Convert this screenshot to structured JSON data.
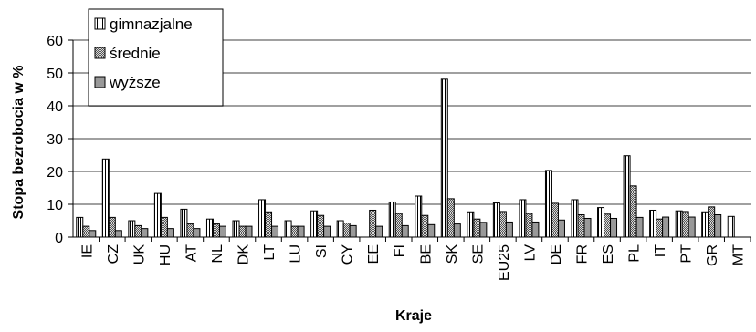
{
  "chart_data": {
    "type": "bar",
    "xlabel": "Kraje",
    "ylabel": "Stopa bezrobocia w %",
    "ylim": [
      0,
      60
    ],
    "yticks": [
      0,
      10,
      20,
      30,
      40,
      50,
      60
    ],
    "grid": "horizontal",
    "legend_position": "top-left",
    "categories": [
      "IE",
      "CZ",
      "UK",
      "HU",
      "AT",
      "NL",
      "DK",
      "LT",
      "LU",
      "SI",
      "CY",
      "EE",
      "FI",
      "BE",
      "SK",
      "SE",
      "EU25",
      "LV",
      "DE",
      "FR",
      "ES",
      "PL",
      "IT",
      "PT",
      "GR",
      "MT"
    ],
    "series": [
      {
        "name": "gimnazjalne",
        "pattern": "vertical-stripes",
        "values": [
          6,
          23.8,
          5,
          13.3,
          8.5,
          5.5,
          5,
          11.4,
          5,
          8,
          5,
          0,
          10.7,
          12.5,
          48.1,
          7.7,
          10.4,
          11.4,
          20.3,
          11.4,
          9,
          24.8,
          8.2,
          8,
          7.7,
          6.3
        ]
      },
      {
        "name": "średnie",
        "pattern": "crosshatch",
        "values": [
          3.3,
          6,
          3.5,
          6,
          4,
          4,
          3.3,
          7.7,
          3.3,
          6.6,
          4.3,
          8.2,
          7.2,
          6.6,
          11.7,
          5.5,
          7.8,
          7.2,
          10.3,
          6.8,
          7,
          15.6,
          5.5,
          7.8,
          9.2,
          0
        ]
      },
      {
        "name": "wyższe",
        "pattern": "solid-gray",
        "values": [
          2,
          2,
          2.6,
          2.6,
          2.6,
          3.3,
          3.3,
          3.3,
          3.3,
          3.3,
          3.5,
          3.3,
          3.5,
          3.8,
          4,
          4.5,
          4.6,
          4.6,
          5.2,
          5.7,
          5.7,
          6,
          6.1,
          6.1,
          6.8,
          0
        ]
      }
    ]
  }
}
